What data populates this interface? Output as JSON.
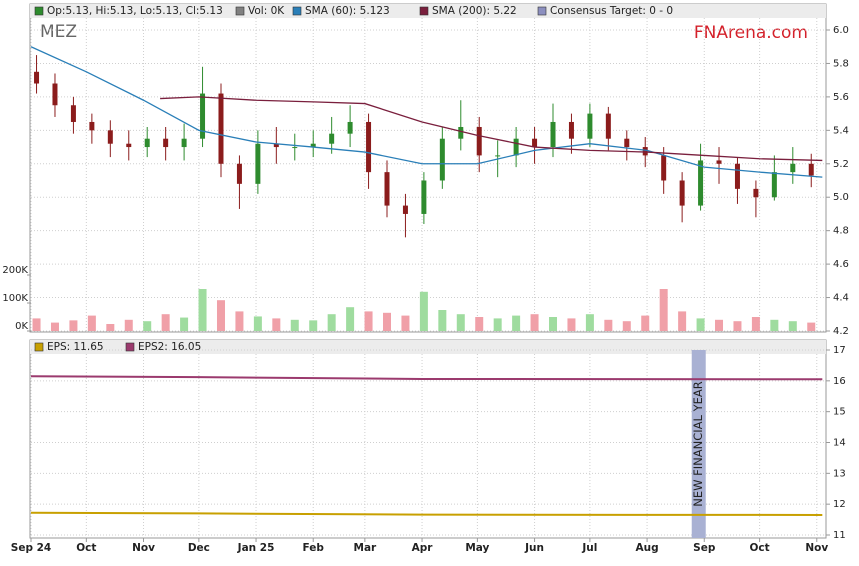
{
  "chart_data": [
    {
      "type": "candlestick",
      "title": "MEZ",
      "annotation": "FNArena.com",
      "xlim": [
        0,
        431
      ],
      "ylim": [
        4.2,
        6.0
      ],
      "yticks": [
        4.2,
        4.4,
        4.6,
        4.8,
        {
          "value": 5,
          "label": "5.0"
        },
        5.2,
        5.4,
        5.6,
        5.8,
        {
          "value": 6,
          "label": "6.0"
        }
      ],
      "volume_ylim": [
        0,
        200000
      ],
      "volume_ticks": [
        {
          "value": 0,
          "label": "0K"
        },
        {
          "value": 100000,
          "label": "100K"
        },
        {
          "value": 200000,
          "label": "200K"
        }
      ],
      "grid": true,
      "candles": {
        "name": "Op:5.13, Hi:5.13, Lo:5.13, Cl:5.13",
        "color": "#2e8b2e",
        "color_down": "#8b1c1c",
        "x": [
          3,
          13,
          23,
          33,
          43,
          53,
          63,
          73,
          83,
          93,
          103,
          113,
          123,
          133,
          143,
          153,
          163,
          173,
          183,
          193,
          203,
          213,
          223,
          233,
          243,
          253,
          263,
          273,
          283,
          293,
          303,
          313,
          323,
          333,
          343,
          353,
          363,
          373,
          383,
          393,
          403,
          413,
          423
        ],
        "open": [
          5.75,
          5.68,
          5.55,
          5.45,
          5.4,
          5.32,
          5.3,
          5.35,
          5.3,
          5.35,
          5.62,
          5.2,
          5.08,
          5.32,
          5.3,
          5.3,
          5.32,
          5.38,
          5.45,
          5.15,
          4.95,
          4.9,
          5.1,
          5.35,
          5.42,
          5.25,
          5.25,
          5.35,
          5.3,
          5.45,
          5.35,
          5.5,
          5.35,
          5.3,
          5.25,
          5.1,
          4.95,
          5.22,
          5.2,
          5.05,
          5.0,
          5.15,
          5.2
        ],
        "high": [
          5.85,
          5.74,
          5.6,
          5.5,
          5.46,
          5.4,
          5.42,
          5.42,
          5.44,
          5.78,
          5.68,
          5.25,
          5.4,
          5.42,
          5.38,
          5.4,
          5.48,
          5.55,
          5.5,
          5.22,
          5.02,
          5.15,
          5.42,
          5.58,
          5.48,
          5.34,
          5.42,
          5.42,
          5.56,
          5.5,
          5.56,
          5.54,
          5.4,
          5.36,
          5.3,
          5.15,
          5.32,
          5.3,
          5.24,
          5.1,
          5.25,
          5.3,
          5.26
        ],
        "low": [
          5.62,
          5.48,
          5.38,
          5.32,
          5.24,
          5.22,
          5.24,
          5.22,
          5.22,
          5.3,
          5.12,
          4.93,
          5.02,
          5.2,
          5.22,
          5.24,
          5.26,
          5.3,
          5.05,
          4.88,
          4.76,
          4.84,
          5.05,
          5.28,
          5.15,
          5.12,
          5.18,
          5.2,
          5.24,
          5.26,
          5.3,
          5.28,
          5.22,
          5.18,
          5.02,
          4.85,
          4.92,
          5.08,
          4.96,
          4.88,
          4.98,
          5.08,
          5.06
        ],
        "close": [
          5.68,
          5.55,
          5.45,
          5.4,
          5.32,
          5.3,
          5.35,
          5.3,
          5.35,
          5.62,
          5.2,
          5.08,
          5.32,
          5.3,
          5.3,
          5.32,
          5.38,
          5.45,
          5.15,
          4.95,
          4.9,
          5.1,
          5.35,
          5.42,
          5.25,
          5.25,
          5.35,
          5.3,
          5.45,
          5.35,
          5.5,
          5.35,
          5.3,
          5.25,
          5.1,
          4.95,
          5.22,
          5.2,
          5.05,
          5.0,
          5.15,
          5.2,
          5.13
        ]
      },
      "volume": {
        "name": "Vol: 0K",
        "color": "#808080",
        "color_up": "#9fdc9f",
        "color_down": "#f0a0a8",
        "values": [
          45000,
          30000,
          38000,
          55000,
          25000,
          40000,
          35000,
          60000,
          48000,
          150000,
          110000,
          70000,
          52000,
          45000,
          40000,
          38000,
          60000,
          85000,
          70000,
          65000,
          55000,
          140000,
          75000,
          60000,
          50000,
          45000,
          55000,
          60000,
          50000,
          45000,
          60000,
          40000,
          35000,
          55000,
          150000,
          70000,
          45000,
          40000,
          35000,
          50000,
          40000,
          35000,
          30000
        ]
      },
      "series": [
        {
          "name": "SMA (60): 5.123",
          "color": "#2a7fb8",
          "x": [
            0,
            30,
            61,
            91,
            122,
            153,
            181,
            212,
            242,
            273,
            303,
            334,
            365,
            395,
            429
          ],
          "values": [
            5.9,
            5.75,
            5.58,
            5.4,
            5.33,
            5.3,
            5.27,
            5.2,
            5.2,
            5.28,
            5.32,
            5.28,
            5.18,
            5.15,
            5.12
          ]
        },
        {
          "name": "SMA (200): 5.22",
          "color": "#7a1f3d",
          "x": [
            70,
            91,
            122,
            153,
            181,
            212,
            242,
            273,
            303,
            334,
            365,
            395,
            429
          ],
          "values": [
            5.59,
            5.6,
            5.58,
            5.57,
            5.56,
            5.45,
            5.37,
            5.3,
            5.28,
            5.27,
            5.25,
            5.23,
            5.22
          ]
        }
      ],
      "consensus": {
        "name": "Consensus Target: 0 - 0",
        "color": "#8c8fbf"
      }
    },
    {
      "type": "line",
      "xlim": [
        0,
        431
      ],
      "xticks": [
        {
          "value": 0,
          "label": "Sep 24"
        },
        {
          "value": 30,
          "label": "Oct"
        },
        {
          "value": 61,
          "label": "Nov"
        },
        {
          "value": 91,
          "label": "Dec"
        },
        {
          "value": 122,
          "label": "Jan 25"
        },
        {
          "value": 153,
          "label": "Feb"
        },
        {
          "value": 181,
          "label": "Mar"
        },
        {
          "value": 212,
          "label": "Apr"
        },
        {
          "value": 242,
          "label": "May"
        },
        {
          "value": 273,
          "label": "Jun"
        },
        {
          "value": 303,
          "label": "Jul"
        },
        {
          "value": 334,
          "label": "Aug"
        },
        {
          "value": 365,
          "label": "Sep"
        },
        {
          "value": 395,
          "label": "Oct"
        },
        {
          "value": 426,
          "label": "Nov"
        }
      ],
      "ylim": [
        11,
        17
      ],
      "yticks": [
        11,
        12,
        13,
        14,
        15,
        16,
        17
      ],
      "grid": true,
      "series": [
        {
          "name": "EPS: 11.65",
          "color": "#c8a000",
          "x": [
            0,
            91,
            212,
            429
          ],
          "values": [
            11.72,
            11.7,
            11.66,
            11.65
          ]
        },
        {
          "name": "EPS2: 16.05",
          "color": "#9b3a6e",
          "x": [
            0,
            91,
            212,
            429
          ],
          "values": [
            16.15,
            16.12,
            16.06,
            16.05
          ]
        }
      ],
      "band": {
        "label": "NEW FINANCIAL YEAR",
        "x": 362,
        "color": "#a9b1d3"
      }
    }
  ]
}
